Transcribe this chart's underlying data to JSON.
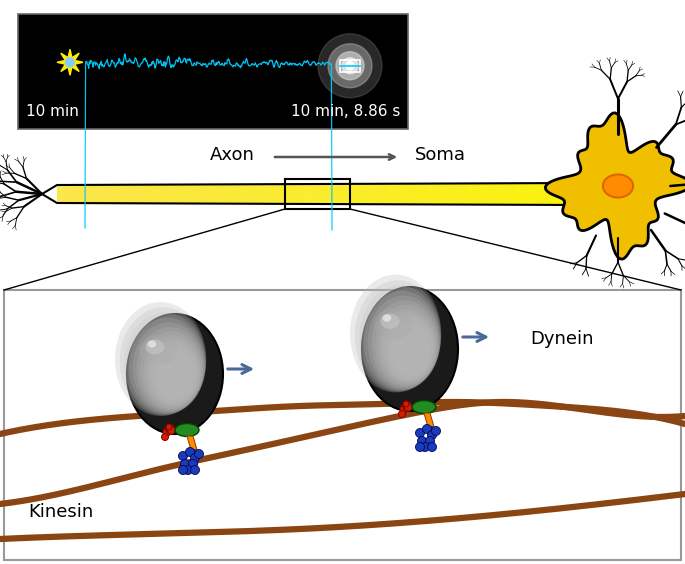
{
  "bg_color": "#ffffff",
  "top_panel_bg": "#000000",
  "microscopy_text_left": "10 min",
  "microscopy_text_right": "10 min, 8.86 s",
  "track_color": "#00bfff",
  "star_color": "#ffff00",
  "axon_color": "#f5e642",
  "axon_label": "Axon",
  "soma_label": "Soma",
  "arrow_color": "#4a6a9a",
  "kinesin_label": "Kinesin",
  "dynein_label": "Dynein",
  "kinesin_color_red": "#cc2200",
  "kinesin_color_green": "#228B22",
  "kinesin_color_orange": "#FF8C00",
  "kinesin_color_blue": "#1a3db5",
  "microtubule_color": "#8B4513",
  "lower_panel_bg": "#ffffff"
}
